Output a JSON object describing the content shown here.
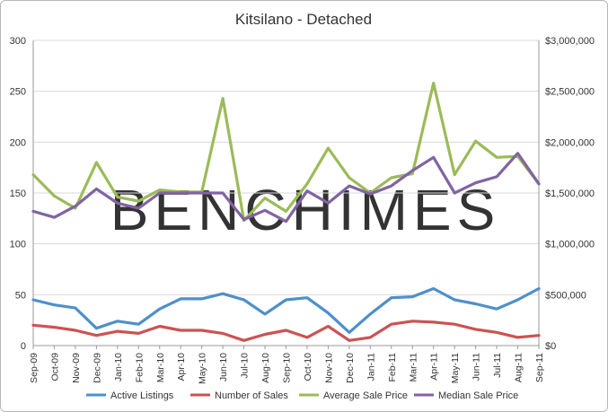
{
  "chart_data": {
    "type": "line",
    "title": "Kitsilano - Detached",
    "watermark": "BENCHIMES",
    "categories": [
      "Sep-09",
      "Oct-09",
      "Nov-09",
      "Dec-09",
      "Jan-10",
      "Feb-10",
      "Mar-10",
      "Apr-10",
      "May-10",
      "Jun-10",
      "Jul-10",
      "Aug-10",
      "Sep-10",
      "Oct-10",
      "Nov-10",
      "Dec-10",
      "Jan-11",
      "Feb-11",
      "Mar-11",
      "Apr-11",
      "May-11",
      "Jun-11",
      "Jul-11",
      "Aug-11",
      "Sep-11"
    ],
    "left_axis": {
      "ylim": [
        0,
        300
      ],
      "ticks": [
        "0",
        "50",
        "100",
        "150",
        "200",
        "250",
        "300"
      ]
    },
    "right_axis": {
      "ylim": [
        0,
        3000000
      ],
      "ticks": [
        "$0",
        "$500,000",
        "$1,000,000",
        "$1,500,000",
        "$2,000,000",
        "$2,500,000",
        "$3,000,000"
      ]
    },
    "grid": true,
    "legend_position": "bottom",
    "series": [
      {
        "name": "Active Listings",
        "axis": "left",
        "color": "#4f8fcb",
        "values": [
          45,
          40,
          37,
          17,
          24,
          21,
          36,
          46,
          46,
          51,
          45,
          31,
          45,
          47,
          32,
          13,
          31,
          47,
          48,
          56,
          45,
          41,
          36,
          45,
          56
        ]
      },
      {
        "name": "Number of Sales",
        "axis": "left",
        "color": "#cd5252",
        "values": [
          20,
          18,
          15,
          10,
          14,
          12,
          19,
          15,
          15,
          12,
          5,
          11,
          15,
          8,
          19,
          5,
          8,
          21,
          24,
          23,
          21,
          16,
          13,
          8,
          10
        ]
      },
      {
        "name": "Average Sale Price",
        "axis": "right",
        "color": "#9bbb59",
        "values": [
          1680000,
          1470000,
          1350000,
          1800000,
          1460000,
          1420000,
          1530000,
          1510000,
          1510000,
          2430000,
          1230000,
          1450000,
          1320000,
          1590000,
          1940000,
          1650000,
          1500000,
          1650000,
          1690000,
          2580000,
          1680000,
          2010000,
          1850000,
          1860000,
          1590000
        ]
      },
      {
        "name": "Median Sale Price",
        "axis": "right",
        "color": "#8064a2",
        "values": [
          1320000,
          1260000,
          1370000,
          1540000,
          1400000,
          1350000,
          1500000,
          1500000,
          1500000,
          1500000,
          1240000,
          1330000,
          1220000,
          1520000,
          1400000,
          1570000,
          1490000,
          1570000,
          1720000,
          1850000,
          1500000,
          1600000,
          1660000,
          1890000,
          1590000
        ]
      }
    ]
  }
}
